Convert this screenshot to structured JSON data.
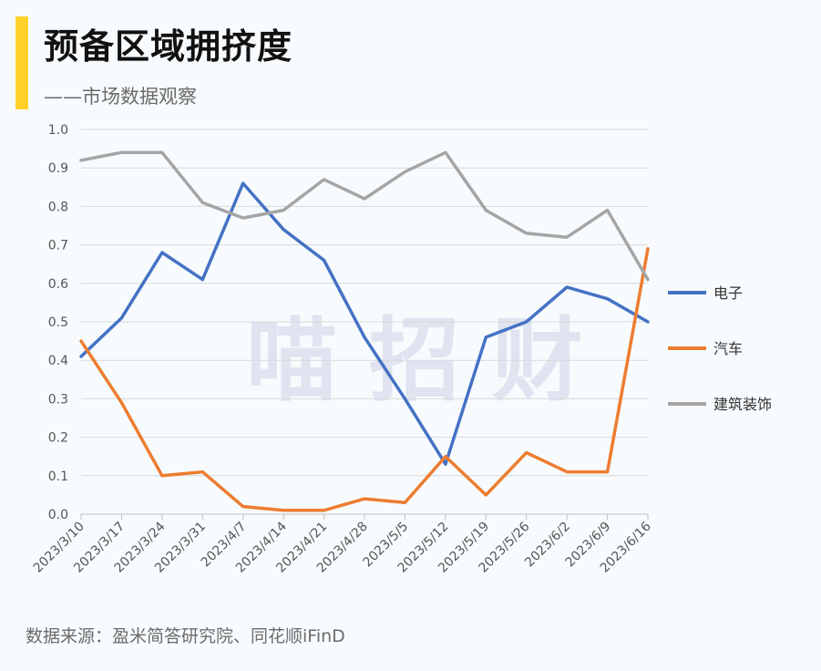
{
  "header": {
    "title": "预备区域拥挤度",
    "subtitle": "——市场数据观察"
  },
  "footer": {
    "source": "数据来源：盈米简答研究院、同花顺iFinD"
  },
  "watermark": "喵 招 财",
  "colors": {
    "accent": "#ffd12a",
    "series": [
      "#4472c4",
      "#ed7d31",
      "#a5a5a5"
    ]
  },
  "chart_data": {
    "type": "line",
    "title": "预备区域拥挤度",
    "subtitle": "——市场数据观察",
    "ylim": [
      0,
      1.0
    ],
    "yticks": [
      "0.0",
      "0.1",
      "0.2",
      "0.3",
      "0.4",
      "0.5",
      "0.6",
      "0.7",
      "0.8",
      "0.9",
      "1.0"
    ],
    "grid": true,
    "legend_position": "right",
    "categories": [
      "2023/3/10",
      "2023/3/17",
      "2023/3/24",
      "2023/3/31",
      "2023/4/7",
      "2023/4/14",
      "2023/4/21",
      "2023/4/28",
      "2023/5/5",
      "2023/5/12",
      "2023/5/19",
      "2023/5/26",
      "2023/6/2",
      "2023/6/9",
      "2023/6/16"
    ],
    "series": [
      {
        "name": "电子",
        "values": [
          0.41,
          0.51,
          0.68,
          0.61,
          0.86,
          0.74,
          0.66,
          0.46,
          0.3,
          0.13,
          0.46,
          0.5,
          0.59,
          0.56,
          0.5
        ]
      },
      {
        "name": "汽车",
        "values": [
          0.45,
          0.29,
          0.1,
          0.11,
          0.02,
          0.01,
          0.01,
          0.04,
          0.03,
          0.15,
          0.05,
          0.16,
          0.11,
          0.11,
          0.69
        ]
      },
      {
        "name": "建筑装饰",
        "values": [
          0.92,
          0.94,
          0.94,
          0.81,
          0.77,
          0.79,
          0.87,
          0.82,
          0.89,
          0.94,
          0.79,
          0.73,
          0.72,
          0.79,
          0.61
        ]
      }
    ]
  }
}
